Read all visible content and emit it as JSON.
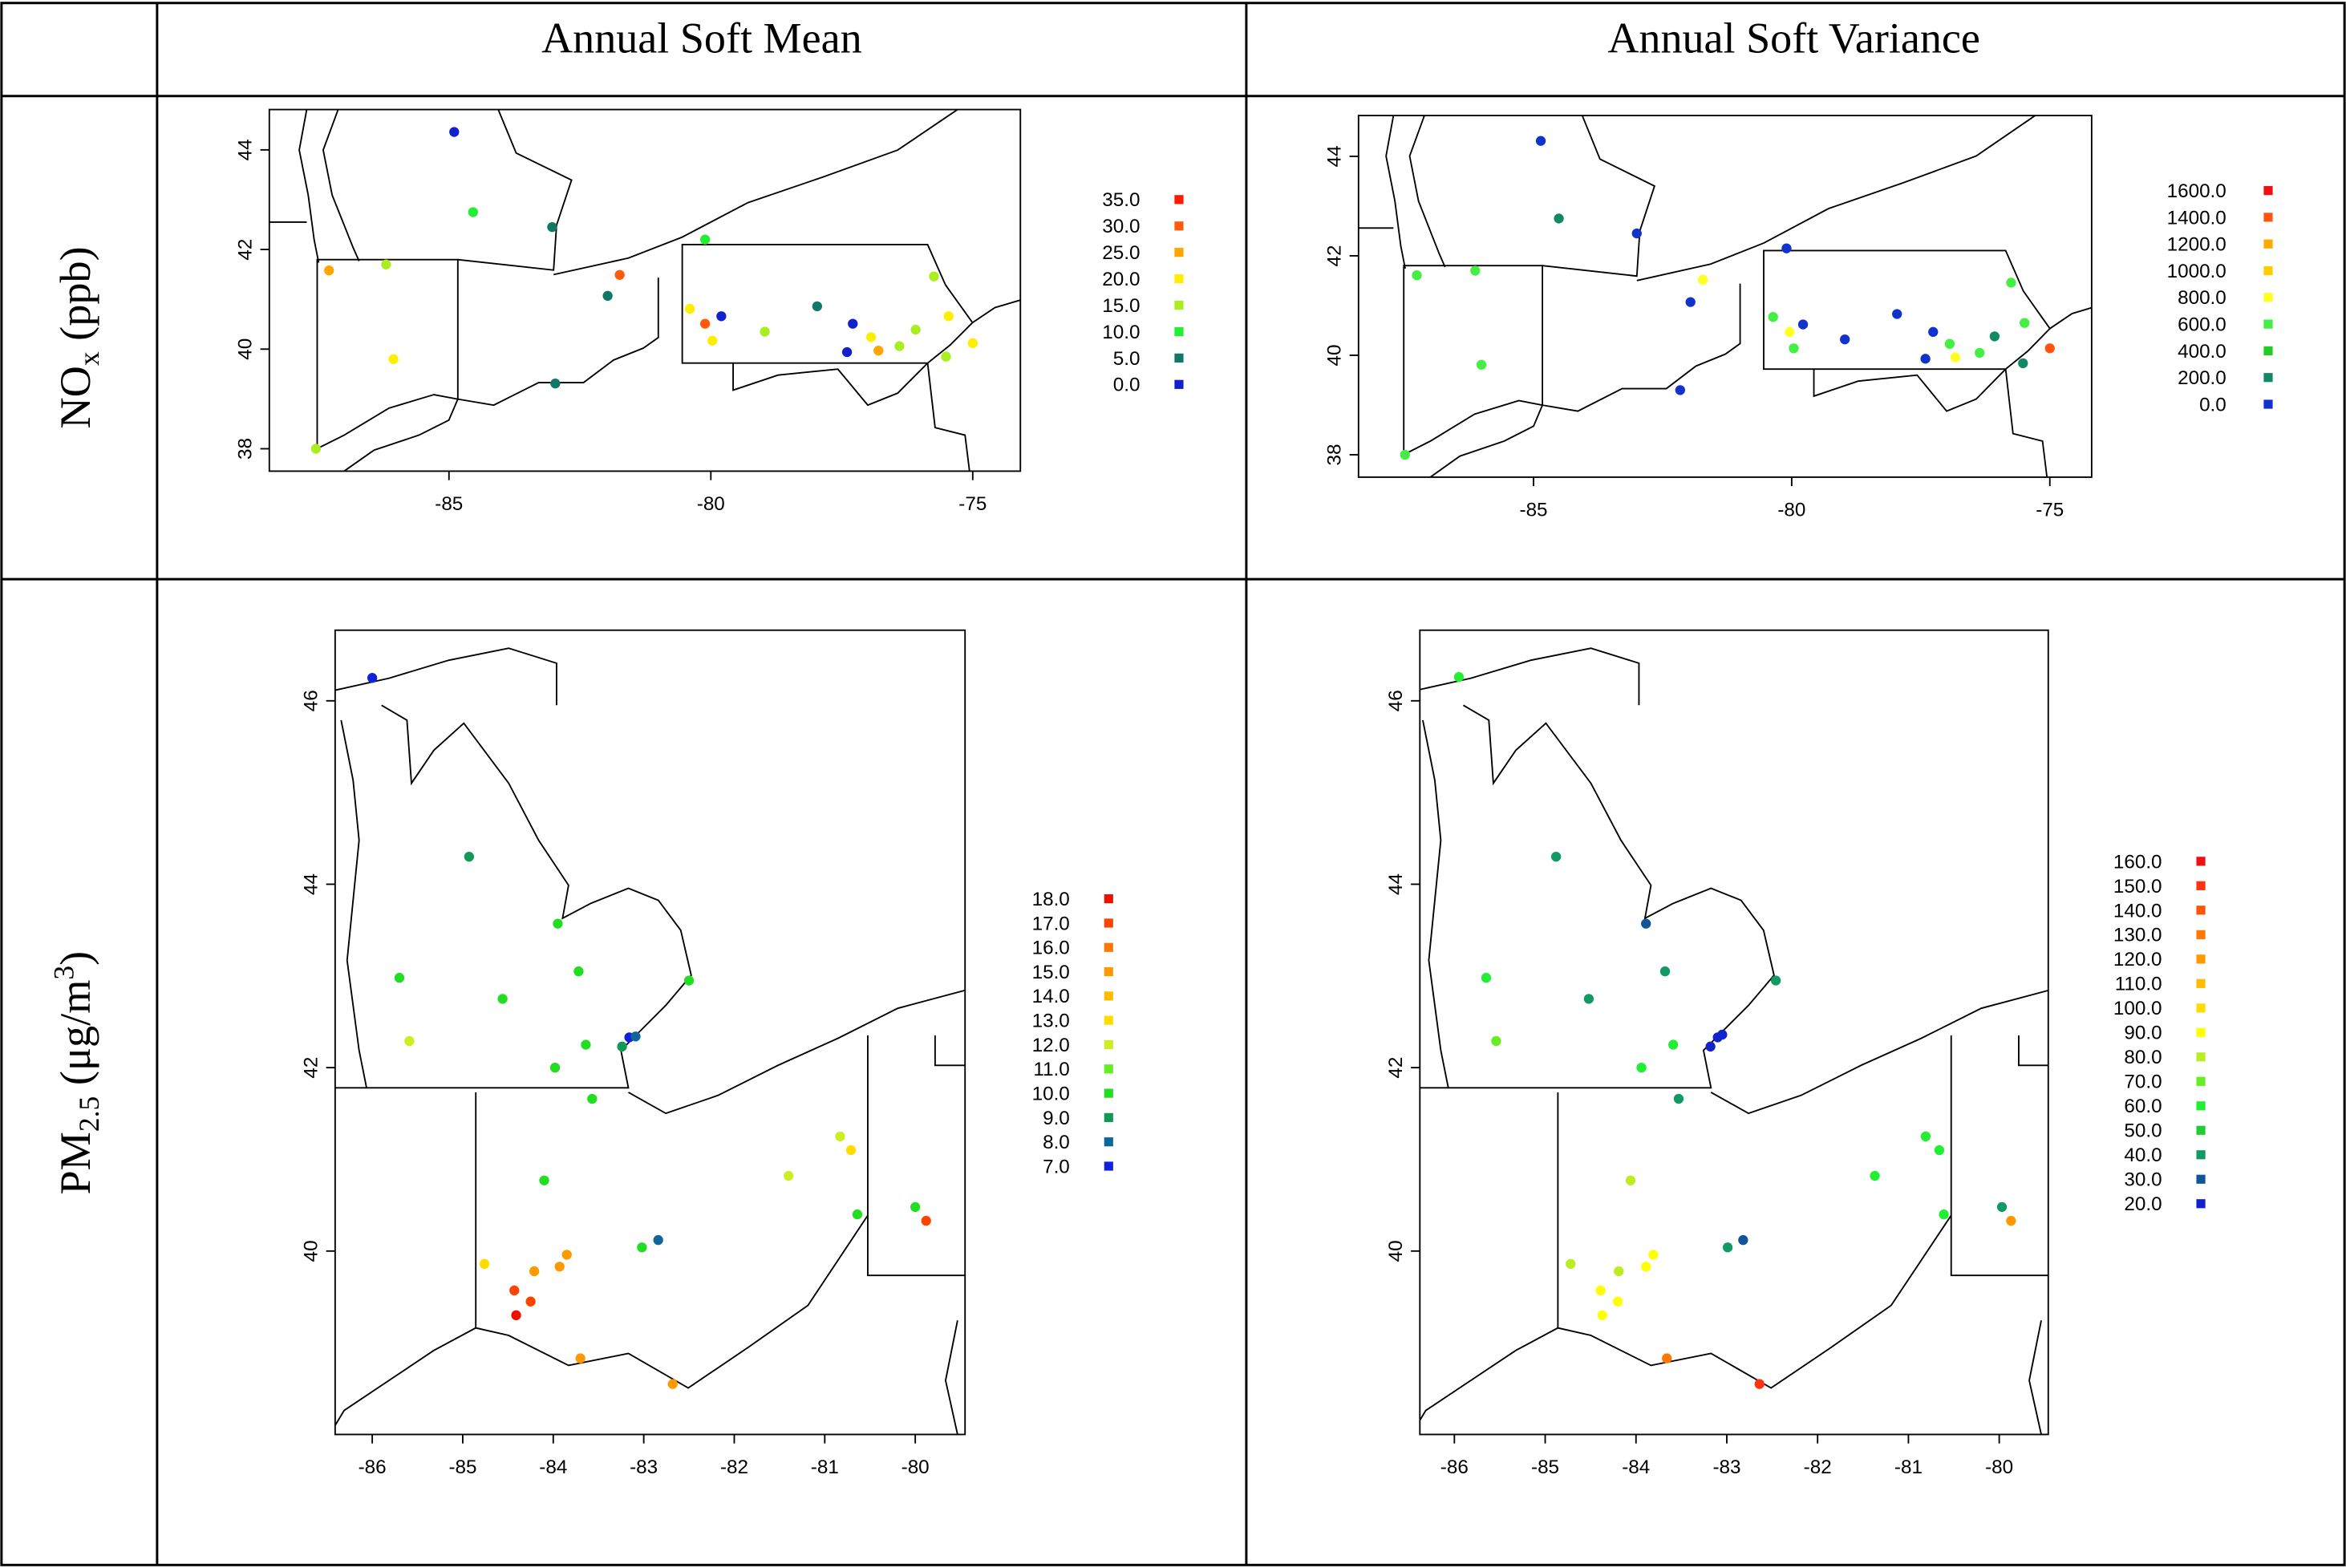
{
  "table": {
    "columns": [
      "Annual Soft Mean",
      "Annual Soft Variance"
    ],
    "rows": [
      {
        "main": "NO",
        "sub": "x",
        "rest": " (ppb)"
      },
      {
        "main": "PM",
        "sub": "2.5",
        "rest": " (μg/m",
        "sup": "3",
        "end": ")"
      }
    ]
  },
  "chart_data": [
    {
      "type": "scatter",
      "xlim": [
        -88.43,
        -74.09
      ],
      "ylim": [
        37.55,
        44.81
      ],
      "xticks": [
        -85,
        -80,
        -75
      ],
      "yticks": [
        38,
        40,
        42,
        44
      ],
      "legend": [
        {
          "label": "35.0",
          "color": "#ff1a00"
        },
        {
          "label": "30.0",
          "color": "#ff5a0a"
        },
        {
          "label": "25.0",
          "color": "#ffa500"
        },
        {
          "label": "20.0",
          "color": "#ffee00"
        },
        {
          "label": "15.0",
          "color": "#aaee22"
        },
        {
          "label": "10.0",
          "color": "#22ee33"
        },
        {
          "label": "5.0",
          "color": "#117766"
        },
        {
          "label": "0.0",
          "color": "#1122cc"
        }
      ],
      "x": [
        -84.9,
        -84.54,
        -83.03,
        -87.29,
        -86.2,
        -81.74,
        -81.97,
        -86.06,
        -87.54,
        -82.97,
        -80.11,
        -80.4,
        -80.11,
        -79.8,
        -79.97,
        -78.97,
        -77.97,
        -77.29,
        -77.4,
        -76.94,
        -76.8,
        -76.4,
        -76.09,
        -75.74,
        -75.46,
        -75.51,
        -75.0
      ],
      "y": [
        44.36,
        42.75,
        42.45,
        41.58,
        41.7,
        41.49,
        41.07,
        39.8,
        38.0,
        39.31,
        42.2,
        40.81,
        40.51,
        40.66,
        40.17,
        40.35,
        40.86,
        40.51,
        39.94,
        40.24,
        39.97,
        40.06,
        40.39,
        41.46,
        40.66,
        39.85,
        40.12
      ],
      "colors": [
        "#1122cc",
        "#22ee33",
        "#117766",
        "#ffa500",
        "#aaee22",
        "#ff5a0a",
        "#117766",
        "#ffee00",
        "#aaee22",
        "#117766",
        "#22ee33",
        "#ffee00",
        "#ff5a0a",
        "#1122cc",
        "#ffee00",
        "#aaee22",
        "#117766",
        "#1122cc",
        "#1122cc",
        "#ffee00",
        "#ffa500",
        "#aaee22",
        "#aaee22",
        "#aaee22",
        "#ffee00",
        "#aaee22",
        "#ffee00"
      ]
    },
    {
      "type": "scatter",
      "xlim": [
        -88.39,
        -74.19
      ],
      "ylim": [
        37.55,
        44.82
      ],
      "xticks": [
        -85,
        -80,
        -75
      ],
      "yticks": [
        38,
        40,
        42,
        44
      ],
      "legend": [
        {
          "label": "1600.0",
          "color": "#ee1111"
        },
        {
          "label": "1400.0",
          "color": "#ff5511"
        },
        {
          "label": "1200.0",
          "color": "#ffaa00"
        },
        {
          "label": "1000.0",
          "color": "#ffcc00"
        },
        {
          "label": "800.0",
          "color": "#ffff22"
        },
        {
          "label": "600.0",
          "color": "#44ee44"
        },
        {
          "label": "400.0",
          "color": "#22cc22"
        },
        {
          "label": "200.0",
          "color": "#118866"
        },
        {
          "label": "0.0",
          "color": "#1133cc"
        }
      ],
      "x": [
        -84.86,
        -84.51,
        -83.0,
        -87.26,
        -86.13,
        -81.72,
        -81.96,
        -86.01,
        -87.49,
        -82.16,
        -80.1,
        -80.36,
        -80.04,
        -79.78,
        -79.96,
        -78.97,
        -77.96,
        -77.26,
        -77.41,
        -76.94,
        -76.83,
        -76.36,
        -76.07,
        -75.75,
        -75.49,
        -75.52,
        -75.0
      ],
      "y": [
        44.31,
        42.75,
        42.45,
        41.61,
        41.7,
        41.52,
        41.07,
        39.81,
        38.0,
        39.3,
        42.15,
        40.77,
        40.47,
        40.62,
        40.14,
        40.32,
        40.83,
        40.47,
        39.93,
        40.23,
        39.96,
        40.05,
        40.38,
        41.46,
        40.65,
        39.84,
        40.14
      ],
      "colors": [
        "#1133cc",
        "#118866",
        "#1133cc",
        "#44ee44",
        "#44ee44",
        "#ffff22",
        "#1133cc",
        "#44ee44",
        "#44ee44",
        "#1133cc",
        "#1133cc",
        "#44ee44",
        "#ffff22",
        "#1133cc",
        "#44ee44",
        "#1133cc",
        "#1133cc",
        "#1133cc",
        "#1133cc",
        "#44ee44",
        "#ffff22",
        "#44ee44",
        "#118866",
        "#44ee44",
        "#44ee44",
        "#118866",
        "#ff5511"
      ]
    },
    {
      "type": "scatter",
      "xlim": [
        -86.41,
        -79.45
      ],
      "ylim": [
        38,
        46.77
      ],
      "xticks": [
        -86,
        -85,
        -84,
        -83,
        -82,
        -81,
        -80
      ],
      "yticks": [
        40,
        42,
        44,
        46
      ],
      "legend": [
        {
          "label": "18.0",
          "color": "#ee1100"
        },
        {
          "label": "17.0",
          "color": "#ff4400"
        },
        {
          "label": "16.0",
          "color": "#ff7700"
        },
        {
          "label": "15.0",
          "color": "#ff9900"
        },
        {
          "label": "14.0",
          "color": "#ffbb00"
        },
        {
          "label": "13.0",
          "color": "#ffdd00"
        },
        {
          "label": "12.0",
          "color": "#ccee22"
        },
        {
          "label": "11.0",
          "color": "#66ee22"
        },
        {
          "label": "10.0",
          "color": "#22dd22"
        },
        {
          "label": "9.0",
          "color": "#119955"
        },
        {
          "label": "8.0",
          "color": "#116699"
        },
        {
          "label": "7.0",
          "color": "#1122dd"
        }
      ],
      "x": [
        -86.0,
        -84.93,
        -83.95,
        -85.7,
        -84.56,
        -83.72,
        -82.5,
        -85.59,
        -83.64,
        -83.98,
        -83.24,
        -83.16,
        -83.09,
        -83.57,
        -84.1,
        -80.83,
        -80.71,
        -81.4,
        -80.64,
        -80.0,
        -79.88,
        -83.02,
        -82.84,
        -83.85,
        -83.93,
        -84.76,
        -84.21,
        -84.43,
        -84.25,
        -84.41,
        -83.7,
        -82.68
      ],
      "y": [
        46.25,
        44.3,
        43.57,
        42.98,
        42.75,
        43.05,
        42.95,
        42.29,
        42.25,
        42.0,
        42.23,
        42.33,
        42.34,
        41.66,
        40.77,
        41.25,
        41.1,
        40.82,
        40.4,
        40.48,
        40.33,
        40.04,
        40.12,
        39.96,
        39.83,
        39.86,
        39.78,
        39.57,
        39.45,
        39.3,
        38.83,
        38.55
      ],
      "colors": [
        "#1122dd",
        "#119955",
        "#22dd22",
        "#22dd22",
        "#22dd22",
        "#22dd22",
        "#22dd22",
        "#ccee22",
        "#22dd22",
        "#22dd22",
        "#119955",
        "#1122dd",
        "#116699",
        "#22dd22",
        "#22dd22",
        "#ccee22",
        "#ffdd00",
        "#ccee22",
        "#22dd22",
        "#22dd22",
        "#ff4400",
        "#22dd22",
        "#116699",
        "#ff9900",
        "#ff9900",
        "#ffdd00",
        "#ff9900",
        "#ff4400",
        "#ff4400",
        "#ee1100",
        "#ff9900",
        "#ff9900"
      ]
    },
    {
      "type": "scatter",
      "xlim": [
        -86.38,
        -79.46
      ],
      "ylim": [
        38,
        46.77
      ],
      "xticks": [
        -86,
        -85,
        -84,
        -83,
        -82,
        -81,
        -80
      ],
      "yticks": [
        40,
        42,
        44,
        46
      ],
      "legend": [
        {
          "label": "160.0",
          "color": "#ee1111"
        },
        {
          "label": "150.0",
          "color": "#ff3311"
        },
        {
          "label": "140.0",
          "color": "#ff5500"
        },
        {
          "label": "130.0",
          "color": "#ff7700"
        },
        {
          "label": "120.0",
          "color": "#ff9900"
        },
        {
          "label": "110.0",
          "color": "#ffbb00"
        },
        {
          "label": "100.0",
          "color": "#ffdd00"
        },
        {
          "label": "90.0",
          "color": "#ffff00"
        },
        {
          "label": "80.0",
          "color": "#bbee22"
        },
        {
          "label": "70.0",
          "color": "#66ee22"
        },
        {
          "label": "60.0",
          "color": "#22ee33"
        },
        {
          "label": "50.0",
          "color": "#22cc33"
        },
        {
          "label": "40.0",
          "color": "#119966"
        },
        {
          "label": "30.0",
          "color": "#115599"
        },
        {
          "label": "20.0",
          "color": "#1122cc"
        }
      ],
      "x": [
        -85.95,
        -84.88,
        -83.89,
        -85.65,
        -84.52,
        -83.68,
        -82.46,
        -85.54,
        -83.59,
        -83.94,
        -83.18,
        -83.1,
        -83.05,
        -83.53,
        -84.06,
        -80.81,
        -80.66,
        -81.37,
        -80.61,
        -79.97,
        -79.87,
        -82.99,
        -82.82,
        -83.81,
        -83.89,
        -84.72,
        -84.19,
        -84.39,
        -84.2,
        -84.37,
        -83.66,
        -82.64
      ],
      "y": [
        46.26,
        44.3,
        43.57,
        42.98,
        42.75,
        43.05,
        42.95,
        42.29,
        42.25,
        42.0,
        42.23,
        42.33,
        42.36,
        41.66,
        40.77,
        41.25,
        41.1,
        40.82,
        40.4,
        40.48,
        40.33,
        40.04,
        40.12,
        39.96,
        39.83,
        39.86,
        39.78,
        39.57,
        39.45,
        39.3,
        38.83,
        38.55
      ],
      "colors": [
        "#22ee33",
        "#119966",
        "#115599",
        "#22ee33",
        "#119966",
        "#119966",
        "#119966",
        "#66ee22",
        "#22ee33",
        "#22ee33",
        "#1122cc",
        "#1122cc",
        "#1122cc",
        "#119966",
        "#bbee22",
        "#22ee33",
        "#22ee33",
        "#22ee33",
        "#22ee33",
        "#119966",
        "#ff9900",
        "#119966",
        "#115599",
        "#ffff00",
        "#ffff00",
        "#bbee22",
        "#bbee22",
        "#ffff00",
        "#ffff00",
        "#ffff00",
        "#ff7700",
        "#ff3311"
      ]
    }
  ]
}
